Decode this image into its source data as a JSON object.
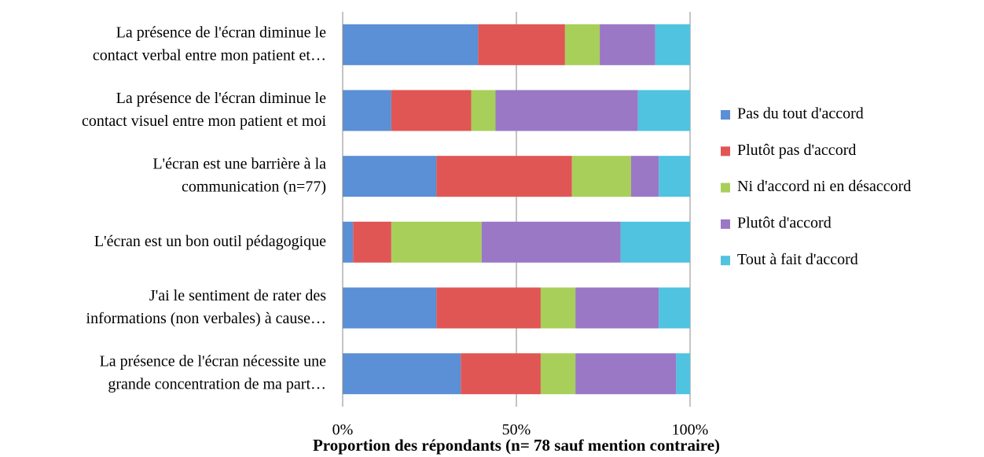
{
  "chart_data": {
    "type": "stacked-bar-horizontal",
    "categories": [
      [
        "La présence de l'écran diminue le",
        "contact verbal entre mon patient et…"
      ],
      [
        "La présence de l'écran diminue le",
        "contact visuel entre mon patient et moi"
      ],
      [
        "L'écran est une barrière à la",
        "communication (n=77)"
      ],
      [
        "L'écran est un bon outil pédagogique"
      ],
      [
        "J'ai le sentiment de rater des",
        "informations (non verbales) à cause…"
      ],
      [
        "La présence de l'écran nécessite une",
        "grande concentration de ma part…"
      ]
    ],
    "series": [
      {
        "name": "Pas du tout d'accord",
        "color": "#5b8fd6",
        "values": [
          39,
          14,
          27,
          3,
          27,
          34
        ]
      },
      {
        "name": "Plutôt pas d'accord",
        "color": "#e05654",
        "values": [
          25,
          23,
          39,
          11,
          30,
          23
        ]
      },
      {
        "name": "Ni d'accord ni en désaccord",
        "color": "#a8cf5a",
        "values": [
          10,
          7,
          17,
          26,
          10,
          10
        ]
      },
      {
        "name": "Plutôt d'accord",
        "color": "#9a78c6",
        "values": [
          16,
          41,
          8,
          40,
          24,
          29
        ]
      },
      {
        "name": "Tout à fait d'accord",
        "color": "#4fc3df",
        "values": [
          10,
          15,
          9,
          20,
          9,
          4
        ]
      }
    ],
    "xlabel": "Proportion des répondants (n= 78 sauf mention contraire)",
    "xlim": [
      0,
      100
    ],
    "xticks": [
      {
        "value": 0,
        "label": "0%"
      },
      {
        "value": 50,
        "label": "50%"
      },
      {
        "value": 100,
        "label": "100%"
      }
    ],
    "grid": true,
    "legend": "right"
  }
}
